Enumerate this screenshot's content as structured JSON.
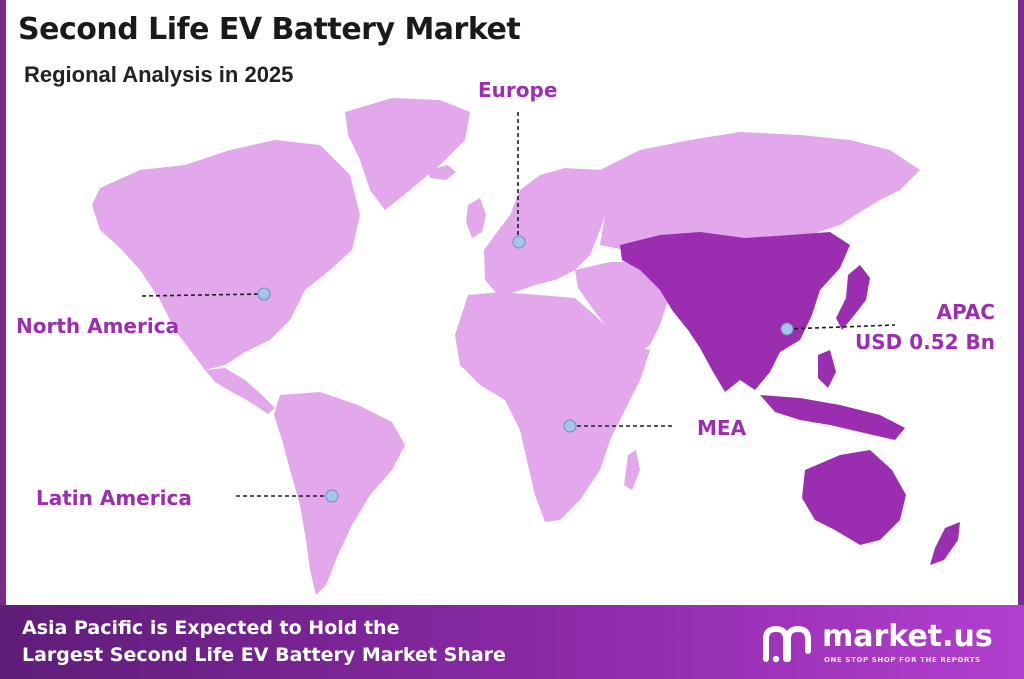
{
  "header": {
    "title": "Second Life EV Battery Market",
    "subtitle": "Regional Analysis in 2025"
  },
  "regions": [
    {
      "key": "north_america",
      "label": "North America",
      "highlighted": false
    },
    {
      "key": "europe",
      "label": "Europe",
      "highlighted": false
    },
    {
      "key": "apac",
      "label": "APAC",
      "value_label": "USD 0.52 Bn",
      "highlighted": true
    },
    {
      "key": "mea",
      "label": "MEA",
      "highlighted": false
    },
    {
      "key": "latin_america",
      "label": "Latin America",
      "highlighted": false
    }
  ],
  "footer": {
    "line1": "Asia Pacific is Expected to Hold the",
    "line2": "Largest Second Life EV Battery Market Share"
  },
  "brand": {
    "name": "market.us",
    "tagline": "ONE STOP SHOP FOR THE REPORTS"
  },
  "colors": {
    "land_default": "#e3a8ec",
    "land_highlight": "#9a2db0",
    "label_text": "#9b2fb0",
    "marker": "#a8c4ea",
    "footer_start": "#5e1d78",
    "footer_end": "#b23fcf"
  }
}
